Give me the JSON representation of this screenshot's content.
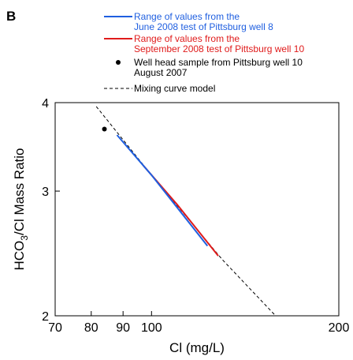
{
  "chart_data": {
    "type": "line",
    "panel_label": "B",
    "xlabel": "Cl (mg/L)",
    "ylabel": "HCO3/Cl Mass Ratio",
    "ylabel_main": "HCO",
    "ylabel_sub": "3",
    "ylabel_rest": "/Cl Mass Ratio",
    "x_scale": "log",
    "y_scale": "log",
    "xlim": [
      70,
      200
    ],
    "ylim": [
      2,
      4
    ],
    "x_ticks": [
      {
        "value": 70,
        "label": "70"
      },
      {
        "value": 80,
        "label": "80"
      },
      {
        "value": 90,
        "label": "90"
      },
      {
        "value": 100,
        "label": "100"
      },
      {
        "value": 200,
        "label": "200"
      }
    ],
    "y_ticks": [
      {
        "value": 2,
        "label": "2"
      },
      {
        "value": 3,
        "label": "3"
      },
      {
        "value": 4,
        "label": "4"
      }
    ],
    "series": [
      {
        "name": "Range of values from the June 2008 test of Pittsburg well 8",
        "legend_lines": [
          "Range of values from the",
          "June 2008 test of Pittsburg well 8"
        ],
        "kind": "line",
        "color": "#1f5fe0",
        "dash": "none",
        "x": [
          88,
          100,
          123
        ],
        "y": [
          3.6,
          3.16,
          2.51
        ]
      },
      {
        "name": "Range of values from the September 2008 test of Pittsburg well 10",
        "legend_lines": [
          "Range of values from the",
          "September 2008 test of Pittsburg well 10"
        ],
        "kind": "line",
        "color": "#e01b1b",
        "dash": "none",
        "x": [
          97,
          110,
          128
        ],
        "y": [
          3.26,
          2.87,
          2.43
        ]
      },
      {
        "name": "Well head sample from Pittsburg well 10 August 2007",
        "legend_lines": [
          "Well head sample from Pittsburg well 10",
          "August 2007"
        ],
        "kind": "point",
        "color": "#000000",
        "dash": "none",
        "x": [
          84
        ],
        "y": [
          3.67
        ]
      },
      {
        "name": "Mixing curve model",
        "legend_lines": [
          "Mixing curve model"
        ],
        "kind": "line",
        "color": "#000000",
        "dash": "4,3",
        "x": [
          81.5,
          100,
          130,
          160
        ],
        "y": [
          3.95,
          3.16,
          2.4,
          1.98
        ]
      }
    ],
    "legend_position": "top",
    "grid": false
  }
}
